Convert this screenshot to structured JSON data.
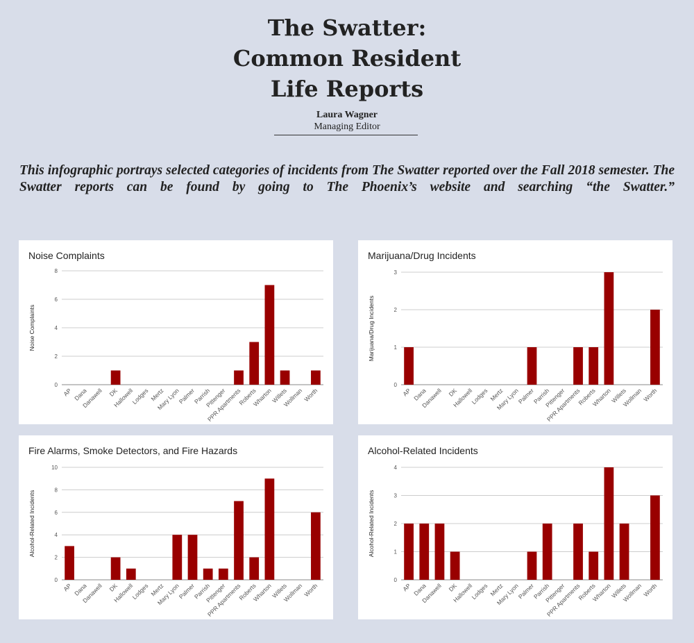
{
  "header": {
    "title_lines": [
      "The Swatter:",
      "Common Resident",
      "Life Reports"
    ],
    "author": "Laura Wagner",
    "role": "Managing Editor"
  },
  "intro": "This infographic portrays selected categories of incidents from The Swatter reported over the Fall 2018 semester. The Swatter reports can be found by going to The Phoenix’s website and searching “the Swatter.”",
  "colors": {
    "bar": "#990000",
    "background": "#d8dde9",
    "panel": "#ffffff",
    "grid": "#cccccc"
  },
  "chart_data": [
    {
      "type": "bar",
      "title": "Noise Complaints",
      "ylabel": "Noise Complaints",
      "xlabel": "",
      "ylim": [
        0,
        8
      ],
      "yticks": [
        0,
        2,
        4,
        6,
        8
      ],
      "grid": true,
      "categories": [
        "AP",
        "Dana",
        "Danawell",
        "DK",
        "Hallowell",
        "Lodges",
        "Mertz",
        "Mary Lyon",
        "Palmer",
        "Parrish",
        "Pittenger",
        "PPR Apartments",
        "Roberts",
        "Wharton",
        "Willets",
        "Wollman",
        "Worth"
      ],
      "values": [
        0,
        0,
        0,
        1,
        0,
        0,
        0,
        0,
        0,
        0,
        0,
        1,
        3,
        7,
        1,
        0,
        1
      ]
    },
    {
      "type": "bar",
      "title": "Marijuana/Drug Incidents",
      "ylabel": "Marijuana/Drug Incidents",
      "xlabel": "",
      "ylim": [
        0,
        3
      ],
      "yticks": [
        0,
        1,
        2,
        3
      ],
      "grid": true,
      "categories": [
        "AP",
        "Dana",
        "Danawell",
        "DK",
        "Hallowell",
        "Lodges",
        "Mertz",
        "Mary Lyon",
        "Palmer",
        "Parrish",
        "Pittenger",
        "PPR Apartments",
        "Roberts",
        "Wharton",
        "Willets",
        "Wollman",
        "Worth"
      ],
      "values": [
        1,
        0,
        0,
        0,
        0,
        0,
        0,
        0,
        1,
        0,
        0,
        1,
        1,
        3,
        0,
        0,
        2
      ]
    },
    {
      "type": "bar",
      "title": "Fire Alarms, Smoke Detectors, and Fire Hazards",
      "ylabel": "Alcohol-Related Incidents",
      "xlabel": "",
      "ylim": [
        0,
        10
      ],
      "yticks": [
        0,
        2,
        4,
        6,
        8,
        10
      ],
      "grid": true,
      "categories": [
        "AP",
        "Dana",
        "Danawell",
        "DK",
        "Hallowell",
        "Lodges",
        "Mertz",
        "Mary Lyon",
        "Palmer",
        "Parrish",
        "Pittenger",
        "PPR Apartments",
        "Roberts",
        "Wharton",
        "Willets",
        "Wollman",
        "Worth"
      ],
      "values": [
        3,
        0,
        0,
        2,
        1,
        0,
        0,
        4,
        4,
        1,
        1,
        7,
        2,
        9,
        0,
        0,
        6
      ]
    },
    {
      "type": "bar",
      "title": "Alcohol-Related Incidents",
      "ylabel": "Alcohol-Related Incidents",
      "xlabel": "",
      "ylim": [
        0,
        4
      ],
      "yticks": [
        0,
        1,
        2,
        3,
        4
      ],
      "grid": true,
      "categories": [
        "AP",
        "Dana",
        "Danawell",
        "DK",
        "Hallowell",
        "Lodges",
        "Mertz",
        "Mary Lyon",
        "Palmer",
        "Parrish",
        "Pittenger",
        "PPR Apartments",
        "Roberts",
        "Wharton",
        "Willets",
        "Wollman",
        "Worth"
      ],
      "values": [
        2,
        2,
        2,
        1,
        0,
        0,
        0,
        0,
        1,
        2,
        0,
        2,
        1,
        4,
        2,
        0,
        3
      ]
    }
  ]
}
